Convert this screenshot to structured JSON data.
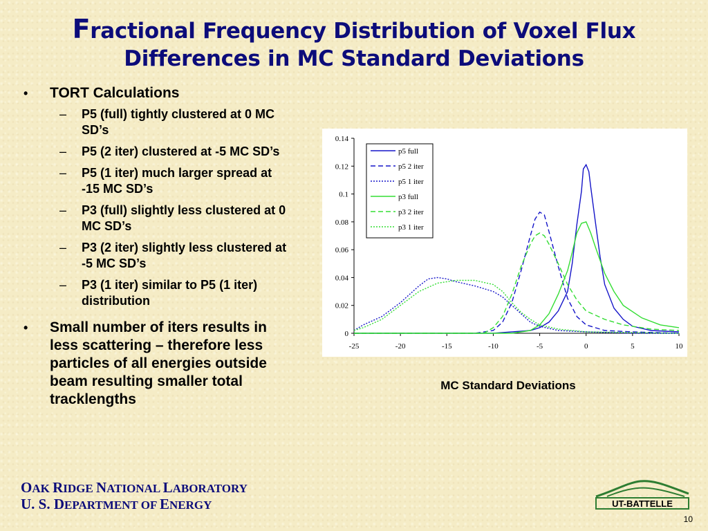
{
  "slide": {
    "title_line1_first": "F",
    "title_line1_rest": "ractional Frequency Distribution of Voxel Flux",
    "title_line2": "Differences in MC Standard Deviations",
    "bullets": [
      {
        "text": "TORT Calculations",
        "sub": [
          "P5 (full) tightly clustered at 0 MC SD’s",
          "P5 (2 iter) clustered at -5 MC SD’s",
          "P5 (1 iter) much larger spread at -15 MC SD’s",
          "P3 (full) slightly less clustered at 0 MC SD’s",
          "P3 (2 iter) slightly less clustered at -5 MC SD’s",
          "P3 (1 iter) similar to P5 (1 iter) distribution"
        ]
      },
      {
        "text": "Small number of iters results in less scattering – therefore less particles of all energies outside beam resulting smaller total tracklengths",
        "sub": []
      }
    ],
    "bullet_mark": "•",
    "sub_mark": "–",
    "chart_xcaption": "MC Standard Deviations",
    "org_line1": [
      {
        "big": "O",
        "small": "AK "
      },
      {
        "big": "R",
        "small": "IDGE "
      },
      {
        "big": "N",
        "small": "ATIONAL "
      },
      {
        "big": "L",
        "small": "ABORATORY"
      }
    ],
    "org_line2": [
      {
        "big": "U. S. D",
        "small": "EPARTMENT OF "
      },
      {
        "big": "E",
        "small": "NERGY"
      }
    ],
    "logo_text": "UT-BATTELLE",
    "page_number": "10",
    "colors": {
      "title": "#0c0c7a",
      "blue": "#1414c8",
      "green": "#33dd33"
    }
  },
  "chart_data": {
    "type": "line",
    "xlim": [
      -25,
      10
    ],
    "ylim": [
      0,
      0.14
    ],
    "xticks": [
      -25,
      -20,
      -15,
      -10,
      -5,
      0,
      5,
      10
    ],
    "yticks": [
      0,
      0.02,
      0.04,
      0.06,
      0.08,
      0.1,
      0.12,
      0.14
    ],
    "ytick_labels": [
      "0",
      "0.02",
      "0.04",
      "0.06",
      "0.08",
      "0.1",
      "0.12",
      "0.14"
    ],
    "legend_position": "top-left",
    "grid": false,
    "series": [
      {
        "name": "p5 full",
        "color": "#1414c8",
        "dash": "solid",
        "points": [
          [
            -25,
            0
          ],
          [
            -10,
            0
          ],
          [
            -6,
            0.002
          ],
          [
            -5,
            0.004
          ],
          [
            -4,
            0.008
          ],
          [
            -3,
            0.016
          ],
          [
            -2,
            0.03
          ],
          [
            -1.5,
            0.05
          ],
          [
            -1,
            0.078
          ],
          [
            -0.5,
            0.102
          ],
          [
            -0.3,
            0.118
          ],
          [
            0,
            0.121
          ],
          [
            0.3,
            0.116
          ],
          [
            0.5,
            0.105
          ],
          [
            1,
            0.08
          ],
          [
            1.5,
            0.055
          ],
          [
            2,
            0.035
          ],
          [
            3,
            0.018
          ],
          [
            4,
            0.01
          ],
          [
            5,
            0.005
          ],
          [
            7,
            0.002
          ],
          [
            10,
            0.001
          ]
        ]
      },
      {
        "name": "p5 2 iter",
        "color": "#1414c8",
        "dash": "dashed",
        "points": [
          [
            -25,
            0
          ],
          [
            -12,
            0
          ],
          [
            -10,
            0.002
          ],
          [
            -9,
            0.008
          ],
          [
            -8,
            0.022
          ],
          [
            -7,
            0.045
          ],
          [
            -6,
            0.07
          ],
          [
            -5.5,
            0.082
          ],
          [
            -5,
            0.087
          ],
          [
            -4.5,
            0.085
          ],
          [
            -4,
            0.073
          ],
          [
            -3,
            0.048
          ],
          [
            -2,
            0.025
          ],
          [
            -1,
            0.012
          ],
          [
            0,
            0.006
          ],
          [
            2,
            0.002
          ],
          [
            5,
            0.001
          ],
          [
            10,
            0
          ]
        ]
      },
      {
        "name": "p5 1 iter",
        "color": "#1414c8",
        "dash": "dotted",
        "points": [
          [
            -25,
            0.002
          ],
          [
            -24,
            0.006
          ],
          [
            -22,
            0.012
          ],
          [
            -20,
            0.022
          ],
          [
            -18,
            0.034
          ],
          [
            -17,
            0.039
          ],
          [
            -16,
            0.04
          ],
          [
            -15,
            0.039
          ],
          [
            -14,
            0.037
          ],
          [
            -12,
            0.034
          ],
          [
            -10,
            0.03
          ],
          [
            -9,
            0.026
          ],
          [
            -8,
            0.02
          ],
          [
            -7,
            0.014
          ],
          [
            -6,
            0.008
          ],
          [
            -5,
            0.005
          ],
          [
            -3,
            0.002
          ],
          [
            0,
            0.001
          ],
          [
            5,
            0
          ],
          [
            10,
            0
          ]
        ]
      },
      {
        "name": "p3 full",
        "color": "#33dd33",
        "dash": "solid",
        "points": [
          [
            -25,
            0
          ],
          [
            -8,
            0
          ],
          [
            -6,
            0.002
          ],
          [
            -5,
            0.006
          ],
          [
            -4,
            0.014
          ],
          [
            -3,
            0.028
          ],
          [
            -2,
            0.045
          ],
          [
            -1.5,
            0.058
          ],
          [
            -1,
            0.072
          ],
          [
            -0.5,
            0.079
          ],
          [
            0,
            0.08
          ],
          [
            0.5,
            0.072
          ],
          [
            1,
            0.062
          ],
          [
            2,
            0.043
          ],
          [
            3,
            0.03
          ],
          [
            4,
            0.02
          ],
          [
            6,
            0.011
          ],
          [
            8,
            0.006
          ],
          [
            10,
            0.004
          ]
        ]
      },
      {
        "name": "p3 2 iter",
        "color": "#33dd33",
        "dash": "dashed",
        "points": [
          [
            -25,
            0
          ],
          [
            -11,
            0
          ],
          [
            -10,
            0.004
          ],
          [
            -9,
            0.012
          ],
          [
            -8,
            0.028
          ],
          [
            -7,
            0.048
          ],
          [
            -6,
            0.064
          ],
          [
            -5.5,
            0.07
          ],
          [
            -5,
            0.072
          ],
          [
            -4.5,
            0.07
          ],
          [
            -4,
            0.064
          ],
          [
            -3,
            0.05
          ],
          [
            -2,
            0.035
          ],
          [
            -1,
            0.024
          ],
          [
            0,
            0.016
          ],
          [
            2,
            0.01
          ],
          [
            4,
            0.006
          ],
          [
            7,
            0.003
          ],
          [
            10,
            0.002
          ]
        ]
      },
      {
        "name": "p3 1 iter",
        "color": "#33dd33",
        "dash": "dotted",
        "points": [
          [
            -25,
            0.002
          ],
          [
            -24,
            0.004
          ],
          [
            -22,
            0.01
          ],
          [
            -20,
            0.02
          ],
          [
            -18,
            0.03
          ],
          [
            -16,
            0.036
          ],
          [
            -15,
            0.037
          ],
          [
            -14,
            0.038
          ],
          [
            -12,
            0.038
          ],
          [
            -10,
            0.035
          ],
          [
            -9,
            0.03
          ],
          [
            -8,
            0.022
          ],
          [
            -7,
            0.015
          ],
          [
            -6,
            0.01
          ],
          [
            -5,
            0.006
          ],
          [
            -3,
            0.003
          ],
          [
            0,
            0.001
          ],
          [
            10,
            0
          ]
        ]
      }
    ]
  }
}
